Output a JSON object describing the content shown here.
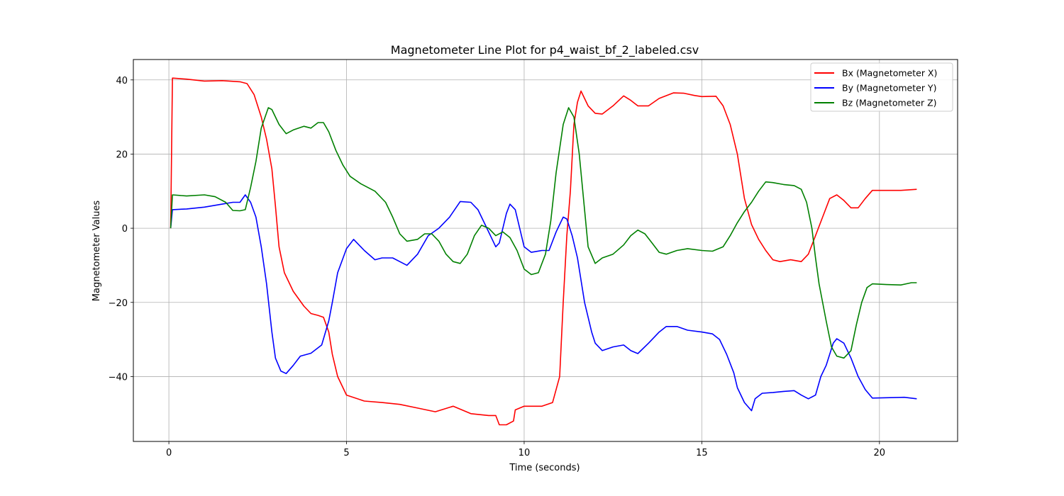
{
  "chart_data": {
    "type": "line",
    "title": "Magnetometer Line Plot for p4_waist_bf_2_labeled.csv",
    "xlabel": "Time (seconds)",
    "ylabel": "Magnetometer Values",
    "xlim": [
      -1.0,
      22.2
    ],
    "ylim": [
      -57.5,
      45.5
    ],
    "xticks": [
      0,
      5,
      10,
      15,
      20
    ],
    "xtick_labels": [
      "0",
      "5",
      "10",
      "15",
      "20"
    ],
    "yticks": [
      -40,
      -20,
      0,
      20,
      40
    ],
    "ytick_labels": [
      "−40",
      "−20",
      "0",
      "20",
      "40"
    ],
    "grid": true,
    "legend_position": "top-right",
    "series": [
      {
        "name": "Bx (Magnetometer X)",
        "color": "#ff0000",
        "points": [
          [
            0.05,
            0
          ],
          [
            0.1,
            40.5
          ],
          [
            0.5,
            40.2
          ],
          [
            1.0,
            39.7
          ],
          [
            1.5,
            39.8
          ],
          [
            2.0,
            39.5
          ],
          [
            2.2,
            39
          ],
          [
            2.4,
            36
          ],
          [
            2.6,
            30
          ],
          [
            2.75,
            24
          ],
          [
            2.9,
            16
          ],
          [
            3.0,
            6
          ],
          [
            3.1,
            -5
          ],
          [
            3.25,
            -12
          ],
          [
            3.5,
            -17
          ],
          [
            3.8,
            -21
          ],
          [
            4.0,
            -23
          ],
          [
            4.2,
            -23.5
          ],
          [
            4.35,
            -24
          ],
          [
            4.5,
            -28
          ],
          [
            4.6,
            -34
          ],
          [
            4.75,
            -40
          ],
          [
            5.0,
            -45
          ],
          [
            5.5,
            -46.6
          ],
          [
            6.0,
            -47
          ],
          [
            6.5,
            -47.5
          ],
          [
            7.0,
            -48.5
          ],
          [
            7.5,
            -49.5
          ],
          [
            8.0,
            -48
          ],
          [
            8.5,
            -50
          ],
          [
            9.0,
            -50.5
          ],
          [
            9.2,
            -50.5
          ],
          [
            9.3,
            -53
          ],
          [
            9.5,
            -53
          ],
          [
            9.7,
            -52
          ],
          [
            9.75,
            -49
          ],
          [
            10.0,
            -48
          ],
          [
            10.5,
            -48
          ],
          [
            10.8,
            -47
          ],
          [
            11.0,
            -40
          ],
          [
            11.1,
            -20
          ],
          [
            11.2,
            -2
          ],
          [
            11.3,
            10
          ],
          [
            11.4,
            28
          ],
          [
            11.5,
            34
          ],
          [
            11.6,
            37
          ],
          [
            11.8,
            33
          ],
          [
            12.0,
            31
          ],
          [
            12.2,
            30.8
          ],
          [
            12.5,
            33
          ],
          [
            12.8,
            35.7
          ],
          [
            13.0,
            34.5
          ],
          [
            13.2,
            33
          ],
          [
            13.5,
            33
          ],
          [
            13.8,
            35
          ],
          [
            14.2,
            36.5
          ],
          [
            14.5,
            36.4
          ],
          [
            14.8,
            35.8
          ],
          [
            15.0,
            35.5
          ],
          [
            15.4,
            35.6
          ],
          [
            15.6,
            33
          ],
          [
            15.8,
            28
          ],
          [
            16.0,
            20
          ],
          [
            16.2,
            8
          ],
          [
            16.4,
            1
          ],
          [
            16.6,
            -3
          ],
          [
            16.8,
            -6
          ],
          [
            17.0,
            -8.5
          ],
          [
            17.2,
            -9
          ],
          [
            17.5,
            -8.5
          ],
          [
            17.8,
            -9
          ],
          [
            18.0,
            -7
          ],
          [
            18.2,
            -2
          ],
          [
            18.4,
            3
          ],
          [
            18.6,
            8
          ],
          [
            18.8,
            9
          ],
          [
            19.0,
            7.5
          ],
          [
            19.2,
            5.5
          ],
          [
            19.4,
            5.5
          ],
          [
            19.6,
            8
          ],
          [
            19.8,
            10.2
          ],
          [
            20.2,
            10.2
          ],
          [
            20.6,
            10.2
          ],
          [
            21.05,
            10.5
          ]
        ]
      },
      {
        "name": "By (Magnetometer Y)",
        "color": "#0000ff",
        "points": [
          [
            0.05,
            0
          ],
          [
            0.1,
            5
          ],
          [
            0.5,
            5.2
          ],
          [
            1.0,
            5.7
          ],
          [
            1.5,
            6.5
          ],
          [
            1.8,
            7
          ],
          [
            2.0,
            7
          ],
          [
            2.15,
            9
          ],
          [
            2.3,
            7
          ],
          [
            2.45,
            3
          ],
          [
            2.6,
            -5
          ],
          [
            2.75,
            -15
          ],
          [
            2.9,
            -28
          ],
          [
            3.0,
            -35
          ],
          [
            3.15,
            -38.5
          ],
          [
            3.3,
            -39.2
          ],
          [
            3.5,
            -37
          ],
          [
            3.7,
            -34.5
          ],
          [
            4.0,
            -33.7
          ],
          [
            4.3,
            -31.5
          ],
          [
            4.5,
            -25
          ],
          [
            4.6,
            -20
          ],
          [
            4.75,
            -12
          ],
          [
            5.0,
            -5.5
          ],
          [
            5.2,
            -3
          ],
          [
            5.5,
            -6
          ],
          [
            5.8,
            -8.5
          ],
          [
            6.0,
            -8
          ],
          [
            6.3,
            -8
          ],
          [
            6.5,
            -9
          ],
          [
            6.7,
            -10
          ],
          [
            7.0,
            -7
          ],
          [
            7.3,
            -2
          ],
          [
            7.6,
            0
          ],
          [
            7.9,
            3
          ],
          [
            8.2,
            7.2
          ],
          [
            8.5,
            7
          ],
          [
            8.7,
            5
          ],
          [
            8.9,
            1
          ],
          [
            9.1,
            -3
          ],
          [
            9.2,
            -5
          ],
          [
            9.3,
            -4
          ],
          [
            9.5,
            4
          ],
          [
            9.6,
            6.5
          ],
          [
            9.75,
            5
          ],
          [
            9.9,
            -1
          ],
          [
            10.0,
            -5
          ],
          [
            10.2,
            -6.5
          ],
          [
            10.5,
            -6
          ],
          [
            10.7,
            -6
          ],
          [
            10.9,
            -1
          ],
          [
            11.1,
            3
          ],
          [
            11.2,
            2.5
          ],
          [
            11.35,
            -2
          ],
          [
            11.5,
            -8
          ],
          [
            11.7,
            -20
          ],
          [
            11.9,
            -28
          ],
          [
            12.0,
            -31
          ],
          [
            12.2,
            -33
          ],
          [
            12.5,
            -32
          ],
          [
            12.8,
            -31.5
          ],
          [
            13.0,
            -33
          ],
          [
            13.2,
            -33.8
          ],
          [
            13.5,
            -31
          ],
          [
            13.8,
            -28
          ],
          [
            14.0,
            -26.5
          ],
          [
            14.3,
            -26.5
          ],
          [
            14.6,
            -27.5
          ],
          [
            15.0,
            -28
          ],
          [
            15.3,
            -28.5
          ],
          [
            15.5,
            -30
          ],
          [
            15.7,
            -34
          ],
          [
            15.9,
            -39
          ],
          [
            16.0,
            -43
          ],
          [
            16.2,
            -47
          ],
          [
            16.4,
            -49.2
          ],
          [
            16.5,
            -46
          ],
          [
            16.7,
            -44.5
          ],
          [
            17.0,
            -44.3
          ],
          [
            17.3,
            -44
          ],
          [
            17.6,
            -43.8
          ],
          [
            17.8,
            -45
          ],
          [
            18.0,
            -46
          ],
          [
            18.2,
            -45
          ],
          [
            18.35,
            -40
          ],
          [
            18.5,
            -37
          ],
          [
            18.7,
            -31
          ],
          [
            18.8,
            -29.8
          ],
          [
            19.0,
            -31
          ],
          [
            19.2,
            -35
          ],
          [
            19.4,
            -40
          ],
          [
            19.6,
            -43.5
          ],
          [
            19.8,
            -45.8
          ],
          [
            20.2,
            -45.7
          ],
          [
            20.7,
            -45.6
          ],
          [
            21.05,
            -46
          ]
        ]
      },
      {
        "name": "Bz (Magnetometer Z)",
        "color": "#008000",
        "points": [
          [
            0.05,
            0
          ],
          [
            0.1,
            9
          ],
          [
            0.5,
            8.7
          ],
          [
            1.0,
            9
          ],
          [
            1.3,
            8.5
          ],
          [
            1.6,
            7
          ],
          [
            1.8,
            4.8
          ],
          [
            2.0,
            4.7
          ],
          [
            2.15,
            5
          ],
          [
            2.3,
            11
          ],
          [
            2.45,
            18
          ],
          [
            2.6,
            27
          ],
          [
            2.8,
            32.5
          ],
          [
            2.9,
            32
          ],
          [
            3.1,
            28
          ],
          [
            3.3,
            25.5
          ],
          [
            3.5,
            26.5
          ],
          [
            3.8,
            27.5
          ],
          [
            4.0,
            27
          ],
          [
            4.2,
            28.5
          ],
          [
            4.35,
            28.5
          ],
          [
            4.5,
            26
          ],
          [
            4.7,
            21
          ],
          [
            4.9,
            17
          ],
          [
            5.1,
            14
          ],
          [
            5.4,
            12
          ],
          [
            5.8,
            10
          ],
          [
            6.1,
            7
          ],
          [
            6.3,
            3
          ],
          [
            6.5,
            -1.5
          ],
          [
            6.7,
            -3.5
          ],
          [
            7.0,
            -3
          ],
          [
            7.2,
            -1.5
          ],
          [
            7.4,
            -1.5
          ],
          [
            7.6,
            -3.5
          ],
          [
            7.8,
            -7
          ],
          [
            8.0,
            -9
          ],
          [
            8.2,
            -9.5
          ],
          [
            8.4,
            -7
          ],
          [
            8.6,
            -2
          ],
          [
            8.8,
            0.8
          ],
          [
            9.0,
            0
          ],
          [
            9.2,
            -2
          ],
          [
            9.4,
            -1
          ],
          [
            9.6,
            -2.5
          ],
          [
            9.8,
            -6
          ],
          [
            10.0,
            -11
          ],
          [
            10.2,
            -12.5
          ],
          [
            10.4,
            -12
          ],
          [
            10.6,
            -7
          ],
          [
            10.75,
            2
          ],
          [
            10.9,
            15
          ],
          [
            11.1,
            28
          ],
          [
            11.25,
            32.5
          ],
          [
            11.4,
            30
          ],
          [
            11.55,
            20
          ],
          [
            11.7,
            5
          ],
          [
            11.8,
            -5
          ],
          [
            12.0,
            -9.5
          ],
          [
            12.2,
            -8
          ],
          [
            12.5,
            -7
          ],
          [
            12.8,
            -4.5
          ],
          [
            13.0,
            -2
          ],
          [
            13.2,
            -0.5
          ],
          [
            13.4,
            -1.5
          ],
          [
            13.6,
            -4
          ],
          [
            13.8,
            -6.5
          ],
          [
            14.0,
            -7
          ],
          [
            14.3,
            -6
          ],
          [
            14.6,
            -5.5
          ],
          [
            15.0,
            -6
          ],
          [
            15.3,
            -6.2
          ],
          [
            15.6,
            -5
          ],
          [
            15.8,
            -2
          ],
          [
            16.0,
            1.5
          ],
          [
            16.2,
            4.5
          ],
          [
            16.4,
            7
          ],
          [
            16.6,
            10
          ],
          [
            16.8,
            12.5
          ],
          [
            17.0,
            12.3
          ],
          [
            17.3,
            11.8
          ],
          [
            17.6,
            11.5
          ],
          [
            17.8,
            10.5
          ],
          [
            17.95,
            7
          ],
          [
            18.1,
            0
          ],
          [
            18.2,
            -8
          ],
          [
            18.3,
            -15
          ],
          [
            18.5,
            -25
          ],
          [
            18.65,
            -32
          ],
          [
            18.8,
            -34.5
          ],
          [
            19.0,
            -35
          ],
          [
            19.2,
            -33
          ],
          [
            19.35,
            -26
          ],
          [
            19.5,
            -20
          ],
          [
            19.65,
            -16
          ],
          [
            19.8,
            -15
          ],
          [
            20.2,
            -15.2
          ],
          [
            20.6,
            -15.3
          ],
          [
            20.9,
            -14.7
          ],
          [
            21.05,
            -14.7
          ]
        ]
      }
    ]
  }
}
